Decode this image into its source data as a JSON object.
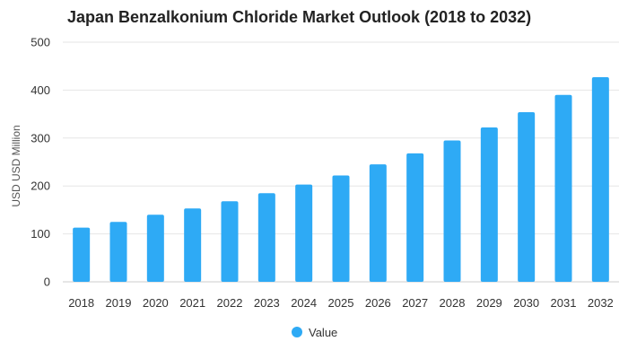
{
  "chart_data": {
    "type": "bar",
    "title": "Japan Benzalkonium Chloride Market Outlook (2018 to 2032)",
    "xlabel": "",
    "ylabel": "USD USD Million",
    "categories": [
      "2018",
      "2019",
      "2020",
      "2021",
      "2022",
      "2023",
      "2024",
      "2025",
      "2026",
      "2027",
      "2028",
      "2029",
      "2030",
      "2031",
      "2032"
    ],
    "series": [
      {
        "name": "Value",
        "values": [
          113,
          125,
          140,
          153,
          168,
          185,
          203,
          222,
          245,
          268,
          295,
          322,
          354,
          390,
          427
        ]
      }
    ],
    "ylim": [
      0,
      500
    ],
    "yticks": [
      "0",
      "100",
      "200",
      "300",
      "400",
      "500"
    ],
    "grid": true,
    "legend_position": "bottom-center",
    "colors": {
      "bar": "#2eaaf5",
      "grid": "#e6e6e6",
      "text": "#333333"
    }
  }
}
